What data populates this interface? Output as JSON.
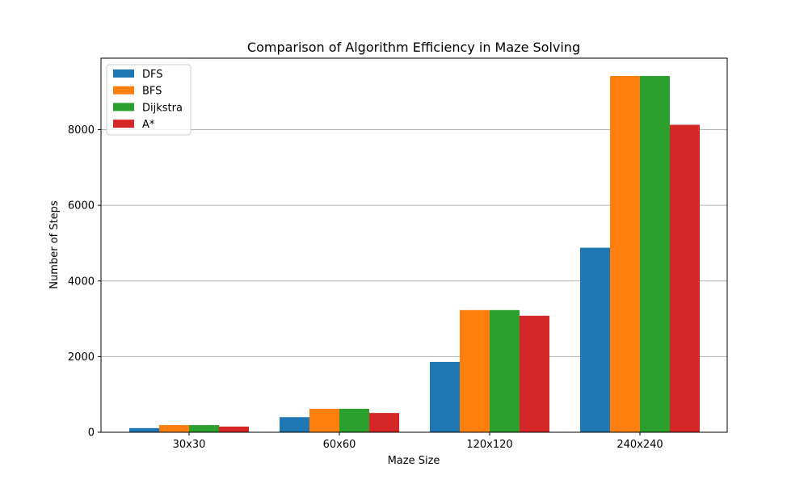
{
  "chart_data": {
    "type": "bar",
    "title": "Comparison of Algorithm Efficiency in Maze Solving",
    "xlabel": "Maze Size",
    "ylabel": "Number of Steps",
    "categories": [
      "30x30",
      "60x60",
      "120x120",
      "240x240"
    ],
    "series": [
      {
        "name": "DFS",
        "color": "#1f77b4",
        "values": [
          110,
          400,
          1860,
          4880
        ]
      },
      {
        "name": "BFS",
        "color": "#ff7f0e",
        "values": [
          190,
          620,
          3230,
          9420
        ]
      },
      {
        "name": "Dijkstra",
        "color": "#2ca02c",
        "values": [
          190,
          620,
          3230,
          9420
        ]
      },
      {
        "name": "A*",
        "color": "#d62728",
        "values": [
          150,
          510,
          3080,
          8130
        ]
      }
    ],
    "ylim": [
      0,
      9891
    ],
    "yticks": [
      0,
      2000,
      4000,
      6000,
      8000
    ],
    "ytick_labels": [
      "0",
      "2000",
      "4000",
      "6000",
      "8000"
    ],
    "grid": "horizontal",
    "legend_position": "top-left"
  }
}
